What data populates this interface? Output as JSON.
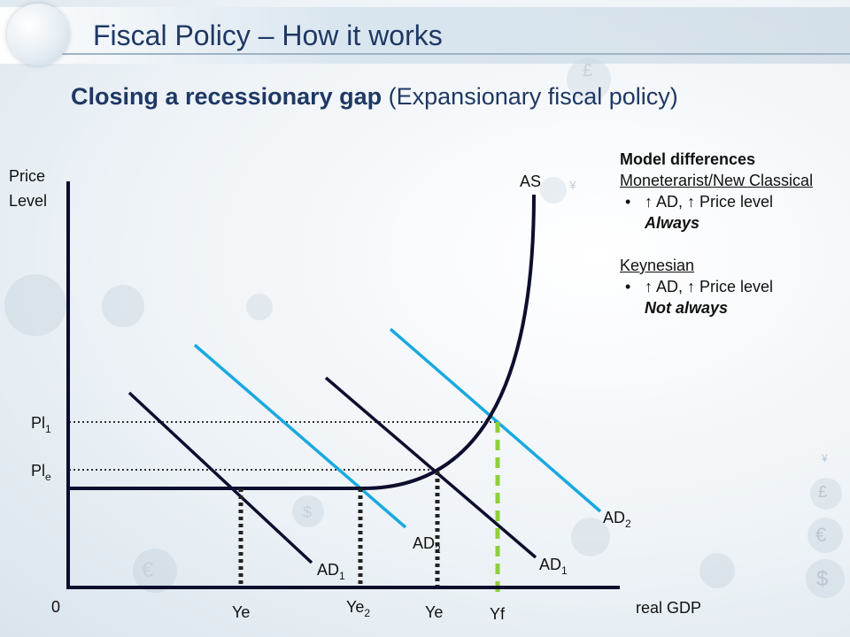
{
  "header": {
    "title": "Fiscal Policy – How it works",
    "subtitle_bold": "Closing a recessionary gap",
    "subtitle_rest": " (Expansionary fiscal policy)"
  },
  "notes": {
    "heading": "Model differences",
    "school1": "Moneterarist/New Classical",
    "school1_point": "↑ AD, ↑ Price level",
    "school1_emph": "Always",
    "school2": "Keynesian",
    "school2_point": "↑ AD, ↑ Price level",
    "school2_emph": "Not always"
  },
  "diagram": {
    "y_axis_label_line1": "Price",
    "y_axis_label_line2": "Level",
    "x_axis_label": "real GDP",
    "origin_label": "0",
    "as_label": "AS",
    "pl1_label": "Pl",
    "pl1_sub": "1",
    "ple_label": "Pl",
    "ple_sub": "e",
    "left_ad1_label": "AD",
    "left_ad1_sub": "1",
    "left_ad2_label": "AD",
    "left_ad2_sub": "2",
    "right_ad1_label": "AD",
    "right_ad1_sub": "1",
    "right_ad2_label": "AD",
    "right_ad2_sub": "2",
    "ye_left_label": "Ye",
    "ye2_label": "Ye",
    "ye2_sub": "2",
    "ye_right_label": "Ye",
    "yf_label": "Yf",
    "colors": {
      "axis": "#0d0d2e",
      "ad1": "#0d0d2e",
      "ad2": "#19a9e0",
      "yf": "#8fcf3c",
      "dotted": "#333333"
    }
  },
  "decor": {
    "currency_symbols": [
      "£",
      "¥",
      "€",
      "$",
      "£",
      "€",
      "$",
      "¥"
    ]
  }
}
